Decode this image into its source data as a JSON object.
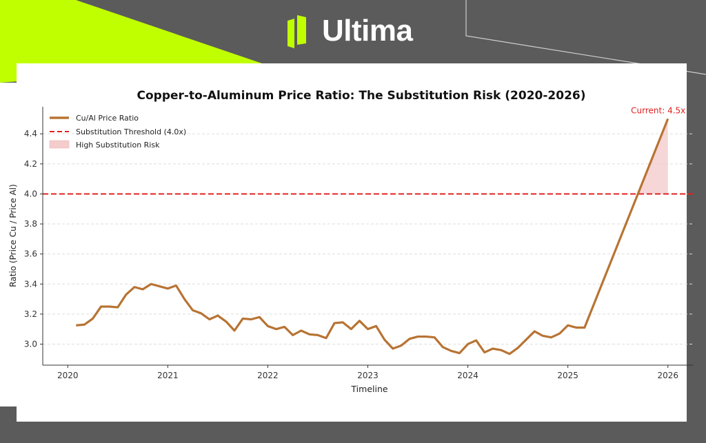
{
  "brand": {
    "name": "Ultima",
    "accent": "#c0ff00",
    "background": "#5b5b5b"
  },
  "chart_data": {
    "type": "line",
    "title": "Copper-to-Aluminum Price Ratio: The Substitution Risk (2020-2026)",
    "xlabel": "Timeline",
    "ylabel": "Ratio (Price Cu / Price Al)",
    "xlim": [
      "2019-10",
      "2026-04"
    ],
    "ylim": [
      2.86,
      4.58
    ],
    "xticks": [
      "2020",
      "2021",
      "2022",
      "2023",
      "2024",
      "2025",
      "2026"
    ],
    "yticks": [
      "3.0",
      "3.2",
      "3.4",
      "3.6",
      "3.8",
      "4.0",
      "4.2",
      "4.4"
    ],
    "grid": "y-dashed",
    "legend_position": "top-left",
    "series": [
      {
        "name": "Cu/Al Price Ratio",
        "color": "#b87333",
        "x": [
          "2020-02",
          "2020-03",
          "2020-04",
          "2020-05",
          "2020-06",
          "2020-07",
          "2020-08",
          "2020-09",
          "2020-10",
          "2020-11",
          "2020-12",
          "2021-01",
          "2021-02",
          "2021-03",
          "2021-04",
          "2021-05",
          "2021-06",
          "2021-07",
          "2021-08",
          "2021-09",
          "2021-10",
          "2021-11",
          "2021-12",
          "2022-01",
          "2022-02",
          "2022-03",
          "2022-04",
          "2022-05",
          "2022-06",
          "2022-07",
          "2022-08",
          "2022-09",
          "2022-10",
          "2022-11",
          "2022-12",
          "2023-01",
          "2023-02",
          "2023-03",
          "2023-04",
          "2023-05",
          "2023-06",
          "2023-07",
          "2023-08",
          "2023-09",
          "2023-10",
          "2023-11",
          "2023-12",
          "2024-01",
          "2024-02",
          "2024-03",
          "2024-04",
          "2024-05",
          "2024-06",
          "2024-07",
          "2024-08",
          "2024-09",
          "2024-10",
          "2024-11",
          "2024-12",
          "2025-01",
          "2025-02",
          "2025-03",
          "2026-01"
        ],
        "y": [
          3.125,
          3.13,
          3.17,
          3.25,
          3.25,
          3.245,
          3.33,
          3.38,
          3.365,
          3.4,
          3.385,
          3.37,
          3.39,
          3.3,
          3.225,
          3.205,
          3.165,
          3.19,
          3.15,
          3.09,
          3.17,
          3.165,
          3.18,
          3.12,
          3.1,
          3.115,
          3.06,
          3.09,
          3.065,
          3.06,
          3.04,
          3.14,
          3.145,
          3.1,
          3.155,
          3.1,
          3.12,
          3.03,
          2.97,
          2.99,
          3.035,
          3.05,
          3.05,
          3.045,
          2.98,
          2.955,
          2.94,
          3.0,
          3.025,
          2.945,
          2.97,
          2.96,
          2.935,
          2.975,
          3.03,
          3.085,
          3.055,
          3.045,
          3.07,
          3.125,
          3.11,
          3.11,
          4.5
        ]
      }
    ],
    "threshold": {
      "name": "Substitution Threshold (4.0x)",
      "value": 4.0,
      "color": "#e02020"
    },
    "risk_area": {
      "name": "High Substitution Risk",
      "color": "#f4cccc"
    },
    "annotation": {
      "text": "Current: 4.5x",
      "color": "#e02020"
    }
  }
}
